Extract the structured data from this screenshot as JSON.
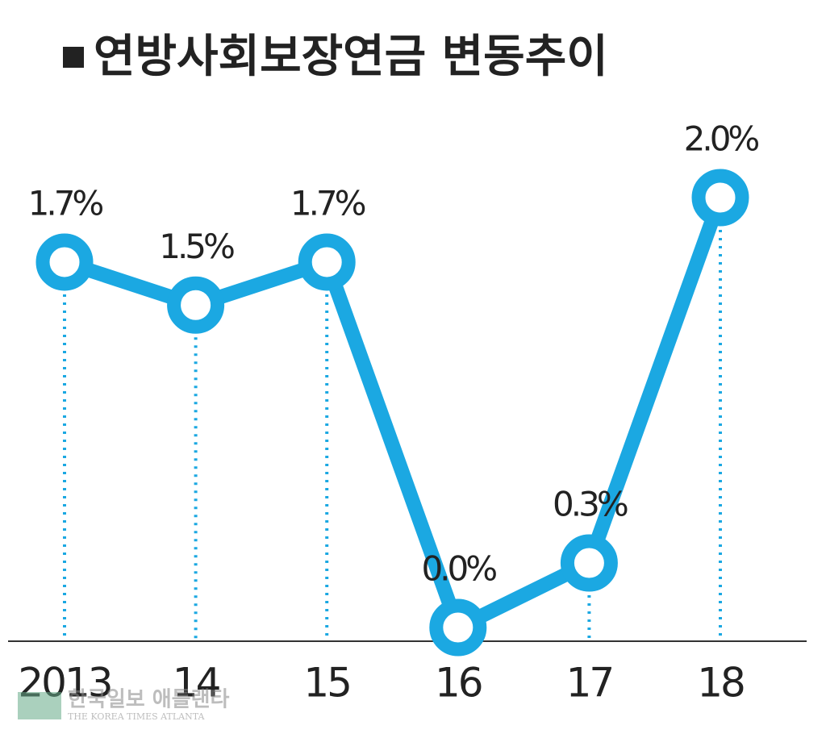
{
  "chart_data": {
    "type": "line",
    "title": "연방사회보장연금 변동추이",
    "categories": [
      "2013",
      "14",
      "15",
      "16",
      "17",
      "18"
    ],
    "values": [
      1.7,
      1.5,
      1.7,
      0.0,
      0.3,
      2.0
    ],
    "value_labels": [
      "1.7%",
      "1.5%",
      "1.7%",
      "0.0%",
      "0.3%",
      "2.0%"
    ],
    "color": "#1ba8e2",
    "watermark": {
      "title": "한국일보 애틀랜타",
      "subtitle": "THE KOREA TIMES ATLANTA"
    }
  }
}
